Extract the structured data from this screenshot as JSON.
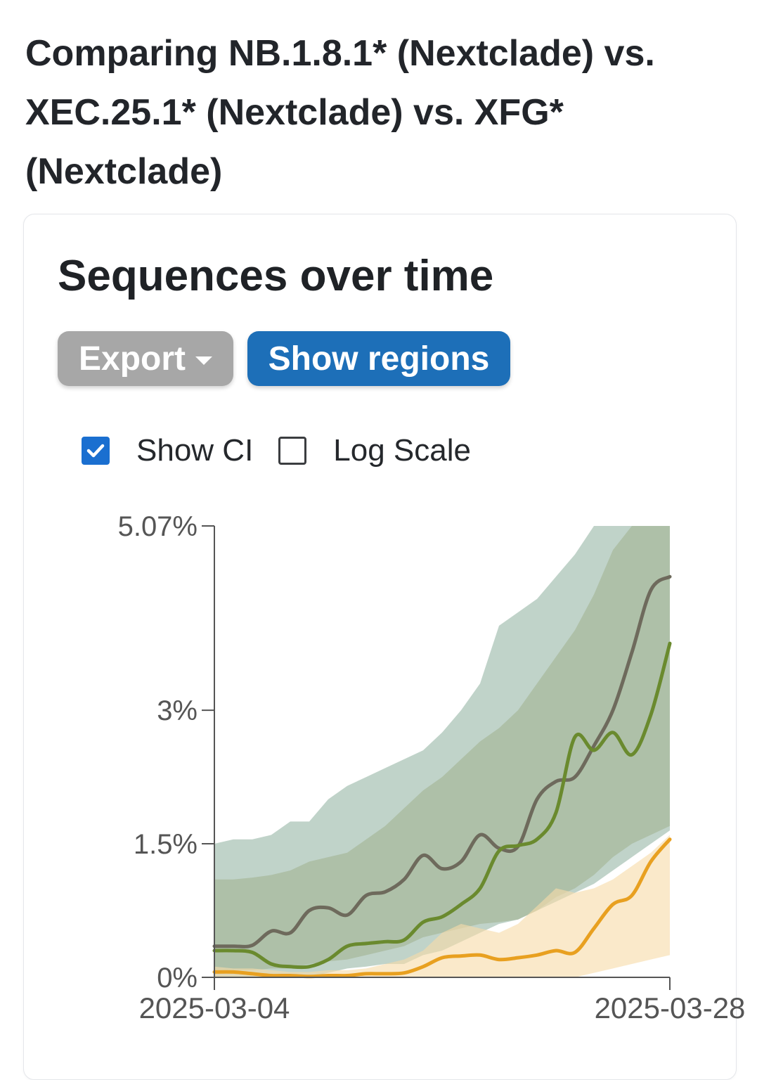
{
  "page": {
    "title": "Comparing NB.1.8.1* (Nextclade) vs. XEC.25.1* (Nextclade) vs. XFG* (Nextclade)"
  },
  "card": {
    "title": "Sequences over time",
    "export_label": "Export",
    "regions_label": "Show regions",
    "show_ci_label": "Show CI",
    "show_ci_checked": true,
    "log_scale_label": "Log Scale",
    "log_scale_checked": false
  },
  "colors": {
    "button_gray": "#a7a7a7",
    "button_blue": "#1d6fb8",
    "checkbox_blue": "#1a6fd0"
  },
  "chart_data": {
    "type": "line",
    "y_axis": {
      "min": 0,
      "max": 5.07,
      "ticks": [
        0,
        1.5,
        3,
        5.07
      ],
      "tick_labels": [
        "0%",
        "1.5%",
        "3%",
        "5.07%"
      ]
    },
    "x_axis": {
      "start": "2025-03-04",
      "end": "2025-03-28",
      "tick_labels": [
        "2025-03-04",
        "2025-03-28"
      ]
    },
    "grid": false,
    "legend": "none",
    "show_ci": true,
    "log_scale": false,
    "series": [
      {
        "color": "#6e6a5c",
        "ci_color": "#b3ac72",
        "points": [
          [
            "2025-03-04",
            0.35
          ],
          [
            "2025-03-05",
            0.35
          ],
          [
            "2025-03-06",
            0.36
          ],
          [
            "2025-03-07",
            0.52
          ],
          [
            "2025-03-08",
            0.5
          ],
          [
            "2025-03-09",
            0.75
          ],
          [
            "2025-03-10",
            0.78
          ],
          [
            "2025-03-11",
            0.7
          ],
          [
            "2025-03-12",
            0.92
          ],
          [
            "2025-03-13",
            0.96
          ],
          [
            "2025-03-14",
            1.1
          ],
          [
            "2025-03-15",
            1.37
          ],
          [
            "2025-03-16",
            1.22
          ],
          [
            "2025-03-17",
            1.3
          ],
          [
            "2025-03-18",
            1.6
          ],
          [
            "2025-03-19",
            1.45
          ],
          [
            "2025-03-20",
            1.47
          ],
          [
            "2025-03-21",
            2.0
          ],
          [
            "2025-03-22",
            2.2
          ],
          [
            "2025-03-23",
            2.25
          ],
          [
            "2025-03-24",
            2.6
          ],
          [
            "2025-03-25",
            3.0
          ],
          [
            "2025-03-26",
            3.65
          ],
          [
            "2025-03-27",
            4.35
          ],
          [
            "2025-03-28",
            4.5
          ]
        ],
        "ci_lower": [
          0.08,
          0.08,
          0.08,
          0.1,
          0.1,
          0.15,
          0.18,
          0.2,
          0.25,
          0.3,
          0.35,
          0.45,
          0.5,
          0.55,
          0.6,
          0.62,
          0.65,
          0.75,
          0.9,
          1.0,
          1.15,
          1.35,
          1.5,
          1.6,
          1.7
        ],
        "ci_upper": [
          1.1,
          1.1,
          1.12,
          1.15,
          1.2,
          1.3,
          1.35,
          1.4,
          1.55,
          1.7,
          1.9,
          2.1,
          2.25,
          2.45,
          2.65,
          2.8,
          3.0,
          3.3,
          3.6,
          3.9,
          4.3,
          4.8,
          5.07,
          5.07,
          5.07
        ]
      },
      {
        "color": "#6a8a2e",
        "ci_color": "#9ab8a8",
        "points": [
          [
            "2025-03-04",
            0.3
          ],
          [
            "2025-03-05",
            0.3
          ],
          [
            "2025-03-06",
            0.28
          ],
          [
            "2025-03-07",
            0.15
          ],
          [
            "2025-03-08",
            0.12
          ],
          [
            "2025-03-09",
            0.12
          ],
          [
            "2025-03-10",
            0.2
          ],
          [
            "2025-03-11",
            0.35
          ],
          [
            "2025-03-12",
            0.38
          ],
          [
            "2025-03-13",
            0.4
          ],
          [
            "2025-03-14",
            0.42
          ],
          [
            "2025-03-15",
            0.62
          ],
          [
            "2025-03-16",
            0.68
          ],
          [
            "2025-03-17",
            0.82
          ],
          [
            "2025-03-18",
            1.0
          ],
          [
            "2025-03-19",
            1.42
          ],
          [
            "2025-03-20",
            1.48
          ],
          [
            "2025-03-21",
            1.55
          ],
          [
            "2025-03-22",
            1.85
          ],
          [
            "2025-03-23",
            2.7
          ],
          [
            "2025-03-24",
            2.55
          ],
          [
            "2025-03-25",
            2.75
          ],
          [
            "2025-03-26",
            2.5
          ],
          [
            "2025-03-27",
            2.95
          ],
          [
            "2025-03-28",
            3.75
          ]
        ],
        "ci_lower": [
          0.0,
          0.0,
          0.0,
          0.0,
          0.0,
          0.0,
          0.05,
          0.1,
          0.12,
          0.15,
          0.15,
          0.25,
          0.3,
          0.4,
          0.5,
          0.6,
          0.65,
          0.75,
          0.85,
          0.95,
          1.05,
          1.2,
          1.35,
          1.5,
          1.65
        ],
        "ci_upper": [
          1.5,
          1.55,
          1.55,
          1.6,
          1.75,
          1.75,
          2.0,
          2.15,
          2.25,
          2.35,
          2.45,
          2.55,
          2.75,
          3.0,
          3.3,
          3.95,
          4.1,
          4.25,
          4.5,
          4.75,
          5.07,
          5.07,
          5.07,
          5.07,
          5.07
        ]
      },
      {
        "color": "#e8a020",
        "ci_color": "#f7dcaa",
        "points": [
          [
            "2025-03-04",
            0.06
          ],
          [
            "2025-03-05",
            0.06
          ],
          [
            "2025-03-06",
            0.04
          ],
          [
            "2025-03-07",
            0.02
          ],
          [
            "2025-03-08",
            0.02
          ],
          [
            "2025-03-09",
            0.01
          ],
          [
            "2025-03-10",
            0.02
          ],
          [
            "2025-03-11",
            0.02
          ],
          [
            "2025-03-12",
            0.04
          ],
          [
            "2025-03-13",
            0.04
          ],
          [
            "2025-03-14",
            0.05
          ],
          [
            "2025-03-15",
            0.12
          ],
          [
            "2025-03-16",
            0.22
          ],
          [
            "2025-03-17",
            0.24
          ],
          [
            "2025-03-18",
            0.25
          ],
          [
            "2025-03-19",
            0.2
          ],
          [
            "2025-03-20",
            0.22
          ],
          [
            "2025-03-21",
            0.25
          ],
          [
            "2025-03-22",
            0.3
          ],
          [
            "2025-03-23",
            0.28
          ],
          [
            "2025-03-24",
            0.55
          ],
          [
            "2025-03-25",
            0.82
          ],
          [
            "2025-03-26",
            0.92
          ],
          [
            "2025-03-27",
            1.3
          ],
          [
            "2025-03-28",
            1.55
          ]
        ],
        "ci_lower": [
          0,
          0,
          0,
          0,
          0,
          0,
          0,
          0,
          0,
          0,
          0,
          0,
          0,
          0,
          0,
          0,
          0,
          0,
          0,
          0,
          0.05,
          0.1,
          0.15,
          0.2,
          0.25
        ],
        "ci_upper": [
          0.12,
          0.1,
          0.1,
          0.08,
          0.06,
          0.06,
          0.08,
          0.08,
          0.1,
          0.15,
          0.2,
          0.3,
          0.5,
          0.6,
          0.55,
          0.5,
          0.6,
          0.8,
          1.0,
          0.95,
          1.0,
          1.1,
          1.25,
          1.4,
          1.6
        ]
      }
    ]
  }
}
